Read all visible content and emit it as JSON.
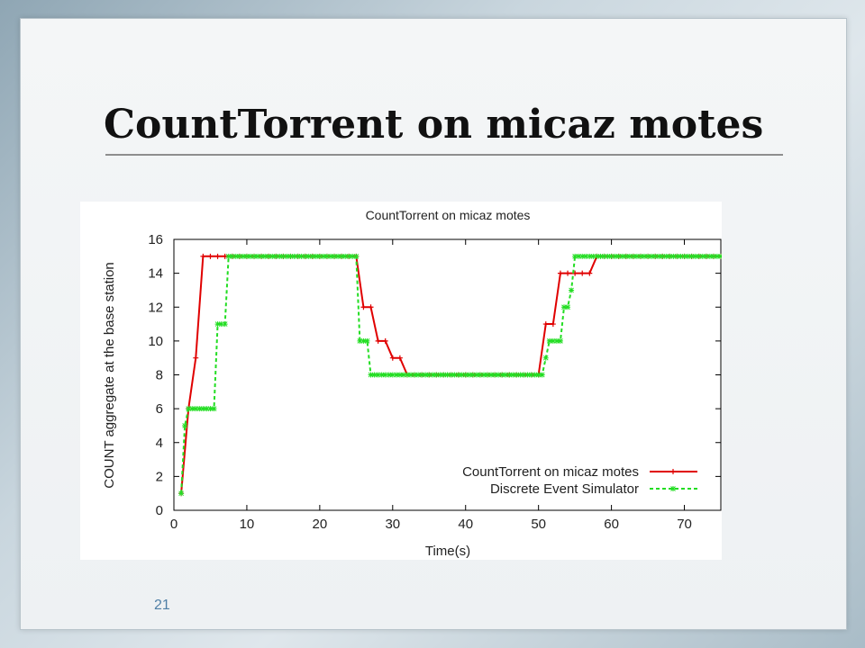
{
  "slide": {
    "title": "CountTorrent on micaz motes",
    "slide_number": "21"
  },
  "chart_data": {
    "type": "line",
    "title": "CountTorrent on micaz motes",
    "xlabel": "Time(s)",
    "ylabel": "COUNT aggregate at the base station",
    "xlim": [
      0,
      75
    ],
    "ylim": [
      0,
      16
    ],
    "xticks": [
      0,
      10,
      20,
      30,
      40,
      50,
      60,
      70
    ],
    "yticks": [
      0,
      2,
      4,
      6,
      8,
      10,
      12,
      14,
      16
    ],
    "grid": false,
    "legend_position": "bottom-right",
    "series": [
      {
        "name": "CountTorrent on micaz motes",
        "color": "#e00000",
        "style": "solid",
        "marker": "plus",
        "points": [
          [
            1,
            1
          ],
          [
            2,
            6
          ],
          [
            3,
            9
          ],
          [
            4,
            15
          ],
          [
            5,
            15
          ],
          [
            6,
            15
          ],
          [
            7,
            15
          ],
          [
            8,
            15
          ],
          [
            9,
            15
          ],
          [
            10,
            15
          ],
          [
            11,
            15
          ],
          [
            12,
            15
          ],
          [
            13,
            15
          ],
          [
            14,
            15
          ],
          [
            15,
            15
          ],
          [
            16,
            15
          ],
          [
            17,
            15
          ],
          [
            18,
            15
          ],
          [
            19,
            15
          ],
          [
            20,
            15
          ],
          [
            21,
            15
          ],
          [
            22,
            15
          ],
          [
            23,
            15
          ],
          [
            24,
            15
          ],
          [
            25,
            15
          ],
          [
            26,
            12
          ],
          [
            27,
            12
          ],
          [
            28,
            10
          ],
          [
            29,
            10
          ],
          [
            30,
            9
          ],
          [
            31,
            9
          ],
          [
            32,
            8
          ],
          [
            33,
            8
          ],
          [
            34,
            8
          ],
          [
            35,
            8
          ],
          [
            36,
            8
          ],
          [
            37,
            8
          ],
          [
            38,
            8
          ],
          [
            39,
            8
          ],
          [
            40,
            8
          ],
          [
            41,
            8
          ],
          [
            42,
            8
          ],
          [
            43,
            8
          ],
          [
            44,
            8
          ],
          [
            45,
            8
          ],
          [
            46,
            8
          ],
          [
            47,
            8
          ],
          [
            48,
            8
          ],
          [
            49,
            8
          ],
          [
            50,
            8
          ],
          [
            51,
            11
          ],
          [
            52,
            11
          ],
          [
            53,
            14
          ],
          [
            54,
            14
          ],
          [
            55,
            14
          ],
          [
            56,
            14
          ],
          [
            57,
            14
          ],
          [
            58,
            15
          ],
          [
            59,
            15
          ],
          [
            60,
            15
          ],
          [
            61,
            15
          ],
          [
            62,
            15
          ],
          [
            63,
            15
          ],
          [
            64,
            15
          ],
          [
            65,
            15
          ],
          [
            66,
            15
          ],
          [
            67,
            15
          ],
          [
            68,
            15
          ],
          [
            69,
            15
          ],
          [
            70,
            15
          ],
          [
            71,
            15
          ],
          [
            72,
            15
          ],
          [
            73,
            15
          ],
          [
            74,
            15
          ],
          [
            75,
            15
          ]
        ]
      },
      {
        "name": "Discrete Event Simulator",
        "color": "#22dd22",
        "style": "dashed",
        "marker": "star",
        "points": [
          [
            1,
            1
          ],
          [
            1.5,
            5
          ],
          [
            2,
            6
          ],
          [
            2.5,
            6
          ],
          [
            3,
            6
          ],
          [
            3.5,
            6
          ],
          [
            4,
            6
          ],
          [
            4.5,
            6
          ],
          [
            5,
            6
          ],
          [
            5.5,
            6
          ],
          [
            6,
            11
          ],
          [
            6.5,
            11
          ],
          [
            7,
            11
          ],
          [
            7.5,
            15
          ],
          [
            8,
            15
          ],
          [
            8.5,
            15
          ],
          [
            9,
            15
          ],
          [
            9.5,
            15
          ],
          [
            10,
            15
          ],
          [
            10.5,
            15
          ],
          [
            11,
            15
          ],
          [
            11.5,
            15
          ],
          [
            12,
            15
          ],
          [
            12.5,
            15
          ],
          [
            13,
            15
          ],
          [
            13.5,
            15
          ],
          [
            14,
            15
          ],
          [
            14.5,
            15
          ],
          [
            15,
            15
          ],
          [
            15.5,
            15
          ],
          [
            16,
            15
          ],
          [
            16.5,
            15
          ],
          [
            17,
            15
          ],
          [
            17.5,
            15
          ],
          [
            18,
            15
          ],
          [
            18.5,
            15
          ],
          [
            19,
            15
          ],
          [
            19.5,
            15
          ],
          [
            20,
            15
          ],
          [
            20.5,
            15
          ],
          [
            21,
            15
          ],
          [
            21.5,
            15
          ],
          [
            22,
            15
          ],
          [
            22.5,
            15
          ],
          [
            23,
            15
          ],
          [
            23.5,
            15
          ],
          [
            24,
            15
          ],
          [
            24.5,
            15
          ],
          [
            25,
            15
          ],
          [
            25.5,
            10
          ],
          [
            26,
            10
          ],
          [
            26.5,
            10
          ],
          [
            27,
            8
          ],
          [
            27.5,
            8
          ],
          [
            28,
            8
          ],
          [
            28.5,
            8
          ],
          [
            29,
            8
          ],
          [
            29.5,
            8
          ],
          [
            30,
            8
          ],
          [
            30.5,
            8
          ],
          [
            31,
            8
          ],
          [
            31.5,
            8
          ],
          [
            32,
            8
          ],
          [
            32.5,
            8
          ],
          [
            33,
            8
          ],
          [
            33.5,
            8
          ],
          [
            34,
            8
          ],
          [
            34.5,
            8
          ],
          [
            35,
            8
          ],
          [
            35.5,
            8
          ],
          [
            36,
            8
          ],
          [
            36.5,
            8
          ],
          [
            37,
            8
          ],
          [
            37.5,
            8
          ],
          [
            38,
            8
          ],
          [
            38.5,
            8
          ],
          [
            39,
            8
          ],
          [
            39.5,
            8
          ],
          [
            40,
            8
          ],
          [
            40.5,
            8
          ],
          [
            41,
            8
          ],
          [
            41.5,
            8
          ],
          [
            42,
            8
          ],
          [
            42.5,
            8
          ],
          [
            43,
            8
          ],
          [
            43.5,
            8
          ],
          [
            44,
            8
          ],
          [
            44.5,
            8
          ],
          [
            45,
            8
          ],
          [
            45.5,
            8
          ],
          [
            46,
            8
          ],
          [
            46.5,
            8
          ],
          [
            47,
            8
          ],
          [
            47.5,
            8
          ],
          [
            48,
            8
          ],
          [
            48.5,
            8
          ],
          [
            49,
            8
          ],
          [
            49.5,
            8
          ],
          [
            50,
            8
          ],
          [
            50.5,
            8
          ],
          [
            51,
            9
          ],
          [
            51.5,
            10
          ],
          [
            52,
            10
          ],
          [
            52.5,
            10
          ],
          [
            53,
            10
          ],
          [
            53.5,
            12
          ],
          [
            54,
            12
          ],
          [
            54.5,
            13
          ],
          [
            55,
            15
          ],
          [
            55.5,
            15
          ],
          [
            56,
            15
          ],
          [
            56.5,
            15
          ],
          [
            57,
            15
          ],
          [
            57.5,
            15
          ],
          [
            58,
            15
          ],
          [
            58.5,
            15
          ],
          [
            59,
            15
          ],
          [
            59.5,
            15
          ],
          [
            60,
            15
          ],
          [
            60.5,
            15
          ],
          [
            61,
            15
          ],
          [
            61.5,
            15
          ],
          [
            62,
            15
          ],
          [
            62.5,
            15
          ],
          [
            63,
            15
          ],
          [
            63.5,
            15
          ],
          [
            64,
            15
          ],
          [
            64.5,
            15
          ],
          [
            65,
            15
          ],
          [
            65.5,
            15
          ],
          [
            66,
            15
          ],
          [
            66.5,
            15
          ],
          [
            67,
            15
          ],
          [
            67.5,
            15
          ],
          [
            68,
            15
          ],
          [
            68.5,
            15
          ],
          [
            69,
            15
          ],
          [
            69.5,
            15
          ],
          [
            70,
            15
          ],
          [
            70.5,
            15
          ],
          [
            71,
            15
          ],
          [
            71.5,
            15
          ],
          [
            72,
            15
          ],
          [
            72.5,
            15
          ],
          [
            73,
            15
          ],
          [
            73.5,
            15
          ],
          [
            74,
            15
          ],
          [
            74.5,
            15
          ],
          [
            75,
            15
          ]
        ]
      }
    ]
  }
}
